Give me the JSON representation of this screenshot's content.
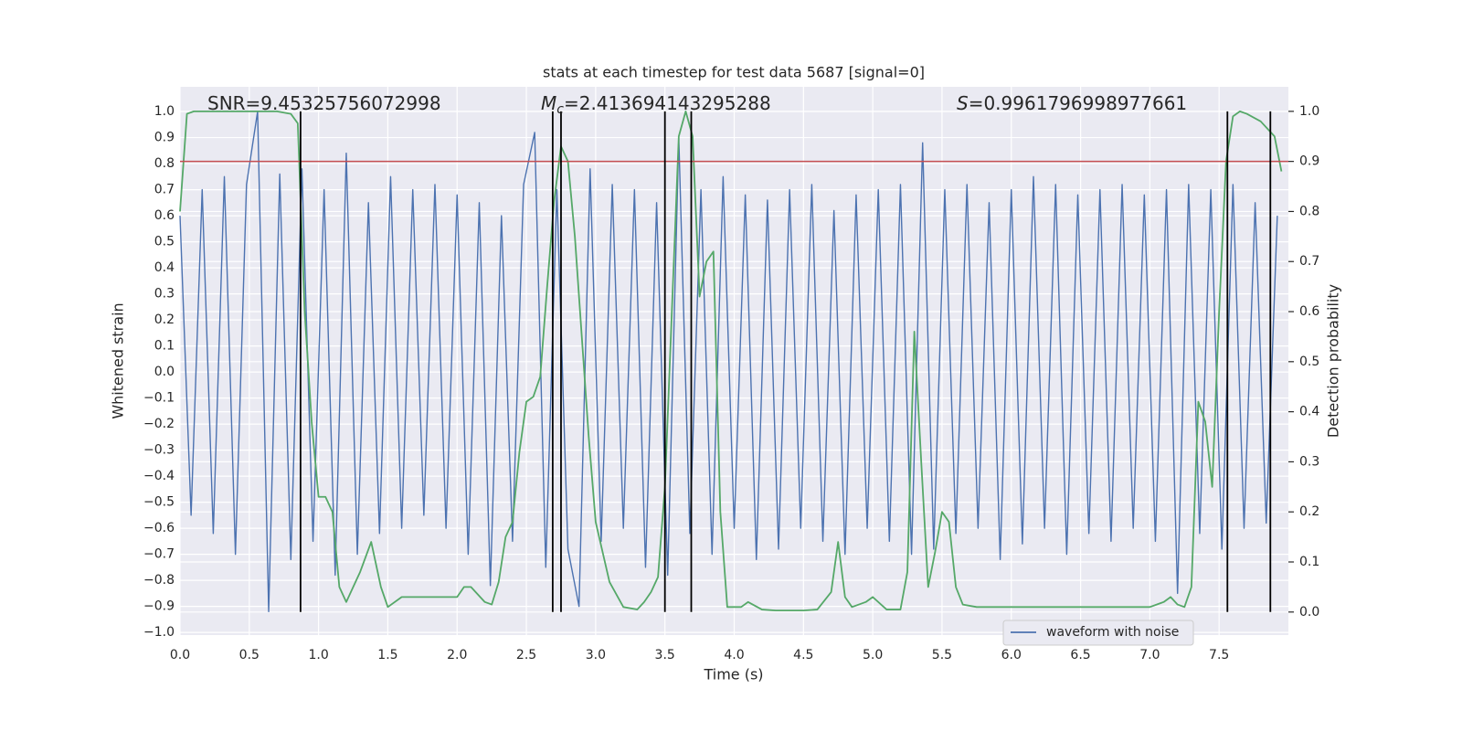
{
  "chart_data": {
    "type": "line",
    "title": "stats at each timestep for test data 5687 [signal=0]",
    "x_label": "Time (s)",
    "y_label": "Whitened strain",
    "y2_label": "Detection probability",
    "xlim": [
      0,
      8
    ],
    "ylim": [
      -1.01,
      1.095
    ],
    "y2lim": [
      -0.046,
      1.049
    ],
    "grid": true,
    "legend": "lower right",
    "xticks": [
      {
        "value": 0,
        "label": "0.0"
      },
      0.5,
      {
        "value": 1,
        "label": "1.0"
      },
      1.5,
      {
        "value": 2,
        "label": "2.0"
      },
      2.5,
      {
        "value": 3,
        "label": "3.0"
      },
      3.5,
      {
        "value": 4,
        "label": "4.0"
      },
      4.5,
      {
        "value": 5,
        "label": "5.0"
      },
      5.5,
      {
        "value": 6,
        "label": "6.0"
      },
      6.5,
      {
        "value": 7,
        "label": "7.0"
      },
      7.5
    ],
    "yticks": [
      {
        "value": -1,
        "label": "−1.0"
      },
      {
        "value": -0.9,
        "label": "−0.9"
      },
      {
        "value": -0.8,
        "label": "−0.8"
      },
      {
        "value": -0.7,
        "label": "−0.7"
      },
      {
        "value": -0.6,
        "label": "−0.6"
      },
      {
        "value": -0.5,
        "label": "−0.5"
      },
      {
        "value": -0.4,
        "label": "−0.4"
      },
      {
        "value": -0.3,
        "label": "−0.3"
      },
      {
        "value": -0.2,
        "label": "−0.2"
      },
      {
        "value": -0.1,
        "label": "−0.1"
      },
      {
        "value": 0,
        "label": "0.0"
      },
      0.1,
      0.2,
      0.3,
      0.4,
      0.5,
      0.6,
      0.7,
      0.8,
      0.9,
      {
        "value": 1,
        "label": "1.0"
      }
    ],
    "y2ticks": [
      {
        "value": 0,
        "label": "0.0"
      },
      0.1,
      0.2,
      0.3,
      0.4,
      0.5,
      0.6,
      0.7,
      0.8,
      0.9,
      {
        "value": 1,
        "label": "1.0"
      }
    ],
    "annotations": [
      {
        "text": "SNR=9.45325756072998"
      },
      {
        "symbol": "M",
        "subscript": "c",
        "text": "=2.413694143295288"
      },
      {
        "symbol": "S",
        "text": "=0.9961796998977661"
      }
    ],
    "hlines": [
      {
        "value": 0.9,
        "color": "#c44e52",
        "axis": "y2"
      }
    ],
    "vlines": {
      "values": [
        0.87,
        2.69,
        2.75,
        3.5,
        3.69,
        7.56,
        7.87
      ],
      "color": "#000000",
      "axis": "y2"
    },
    "series": [
      {
        "name": "waveform with noise",
        "color": "#4c72b0",
        "axis": "y",
        "x": [
          0,
          0.08,
          0.16,
          0.24,
          0.32,
          0.4,
          0.48,
          0.56,
          0.64,
          0.72,
          0.8,
          0.88,
          0.96,
          1.04,
          1.12,
          1.2,
          1.28,
          1.36,
          1.44,
          1.52,
          1.6,
          1.68,
          1.76,
          1.84,
          1.92,
          2,
          2.08,
          2.16,
          2.24,
          2.32,
          2.4,
          2.48,
          2.56,
          2.64,
          2.72,
          2.8,
          2.88,
          2.96,
          3.04,
          3.12,
          3.2,
          3.28,
          3.36,
          3.44,
          3.52,
          3.6,
          3.68,
          3.76,
          3.84,
          3.92,
          4,
          4.08,
          4.16,
          4.24,
          4.32,
          4.4,
          4.48,
          4.56,
          4.64,
          4.72,
          4.8,
          4.88,
          4.96,
          5.04,
          5.12,
          5.2,
          5.28,
          5.36,
          5.44,
          5.52,
          5.6,
          5.68,
          5.76,
          5.84,
          5.92,
          6,
          6.08,
          6.16,
          6.24,
          6.32,
          6.4,
          6.48,
          6.56,
          6.64,
          6.72,
          6.8,
          6.88,
          6.96,
          7.04,
          7.12,
          7.2,
          7.28,
          7.36,
          7.44,
          7.52,
          7.6,
          7.68,
          7.76,
          7.84,
          7.92
        ],
        "values": [
          0.6,
          -0.55,
          0.7,
          -0.62,
          0.75,
          -0.7,
          0.72,
          1.0,
          -0.92,
          0.76,
          -0.72,
          0.78,
          -0.65,
          0.7,
          -0.78,
          0.84,
          -0.7,
          0.65,
          -0.62,
          0.75,
          -0.6,
          0.7,
          -0.55,
          0.72,
          -0.6,
          0.68,
          -0.7,
          0.65,
          -0.82,
          0.6,
          -0.65,
          0.72,
          0.92,
          -0.75,
          0.7,
          -0.68,
          -0.9,
          0.78,
          -0.65,
          0.72,
          -0.6,
          0.7,
          -0.75,
          0.65,
          -0.78,
          0.9,
          -0.62,
          0.7,
          -0.7,
          0.75,
          -0.6,
          0.68,
          -0.72,
          0.66,
          -0.68,
          0.7,
          -0.6,
          0.72,
          -0.65,
          0.62,
          -0.7,
          0.68,
          -0.6,
          0.7,
          -0.65,
          0.72,
          -0.7,
          0.88,
          -0.68,
          0.7,
          -0.62,
          0.72,
          -0.6,
          0.65,
          -0.72,
          0.7,
          -0.66,
          0.75,
          -0.6,
          0.72,
          -0.7,
          0.68,
          -0.62,
          0.7,
          -0.65,
          0.72,
          -0.6,
          0.68,
          -0.65,
          0.7,
          -0.85,
          0.72,
          -0.62,
          0.7,
          -0.68,
          0.72,
          -0.6,
          0.65,
          -0.58,
          0.6
        ]
      },
      {
        "color": "#55a868",
        "axis": "y2",
        "x": [
          0,
          0.05,
          0.1,
          0.2,
          0.3,
          0.4,
          0.5,
          0.6,
          0.7,
          0.8,
          0.85,
          0.9,
          0.95,
          1.0,
          1.05,
          1.1,
          1.15,
          1.2,
          1.25,
          1.3,
          1.38,
          1.45,
          1.5,
          1.6,
          1.7,
          1.8,
          1.9,
          2.0,
          2.05,
          2.1,
          2.2,
          2.25,
          2.3,
          2.35,
          2.4,
          2.45,
          2.5,
          2.55,
          2.6,
          2.65,
          2.7,
          2.75,
          2.8,
          2.85,
          2.9,
          2.95,
          3.0,
          3.1,
          3.2,
          3.3,
          3.35,
          3.4,
          3.45,
          3.5,
          3.55,
          3.6,
          3.65,
          3.7,
          3.75,
          3.8,
          3.85,
          3.9,
          3.95,
          4.05,
          4.1,
          4.2,
          4.3,
          4.5,
          4.6,
          4.7,
          4.75,
          4.8,
          4.85,
          4.95,
          5.0,
          5.1,
          5.2,
          5.25,
          5.3,
          5.35,
          5.4,
          5.45,
          5.5,
          5.55,
          5.6,
          5.65,
          5.75,
          6.0,
          6.5,
          7.0,
          7.1,
          7.15,
          7.2,
          7.25,
          7.3,
          7.35,
          7.4,
          7.45,
          7.5,
          7.55,
          7.6,
          7.65,
          7.7,
          7.8,
          7.9,
          7.95
        ],
        "values": [
          0.8,
          0.995,
          1,
          1,
          1,
          1,
          1,
          1,
          1,
          0.995,
          0.976,
          0.6,
          0.38,
          0.23,
          0.23,
          0.2,
          0.05,
          0.02,
          0.05,
          0.08,
          0.14,
          0.05,
          0.01,
          0.03,
          0.03,
          0.03,
          0.03,
          0.03,
          0.05,
          0.05,
          0.02,
          0.015,
          0.06,
          0.15,
          0.18,
          0.32,
          0.42,
          0.43,
          0.47,
          0.65,
          0.82,
          0.93,
          0.9,
          0.75,
          0.55,
          0.35,
          0.18,
          0.06,
          0.01,
          0.005,
          0.02,
          0.04,
          0.07,
          0.25,
          0.6,
          0.95,
          1.0,
          0.95,
          0.63,
          0.7,
          0.72,
          0.2,
          0.01,
          0.01,
          0.02,
          0.005,
          0.003,
          0.003,
          0.005,
          0.04,
          0.14,
          0.03,
          0.01,
          0.02,
          0.03,
          0.005,
          0.005,
          0.08,
          0.56,
          0.3,
          0.05,
          0.12,
          0.2,
          0.18,
          0.05,
          0.015,
          0.01,
          0.01,
          0.01,
          0.01,
          0.02,
          0.03,
          0.015,
          0.01,
          0.05,
          0.42,
          0.38,
          0.25,
          0.6,
          0.9,
          0.99,
          1.0,
          0.995,
          0.98,
          0.95,
          0.88
        ]
      }
    ]
  }
}
